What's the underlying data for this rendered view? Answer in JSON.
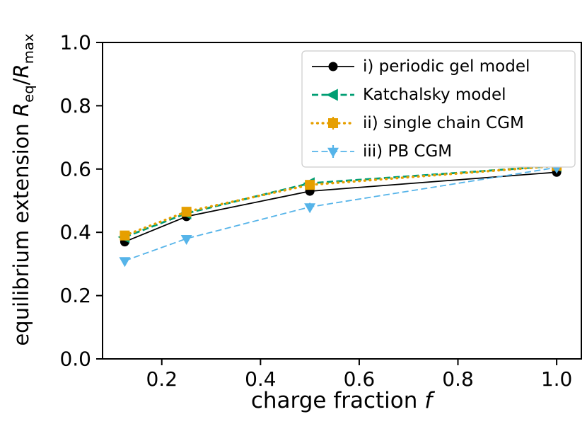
{
  "chart_data": {
    "type": "line",
    "title": "",
    "xlabel": "charge fraction f",
    "ylabel": "equilibrium extension R_eq/R_max",
    "xlabel_parts": {
      "text": "charge fraction ",
      "variable": "f"
    },
    "ylabel_parts": {
      "text": "equilibrium extension ",
      "var1": "R",
      "sub1": "eq",
      "sep": "/",
      "var2": "R",
      "sub2": "max"
    },
    "xlim": [
      0.08,
      1.05
    ],
    "ylim": [
      0.0,
      1.0
    ],
    "xticks": [
      0.2,
      0.4,
      0.6,
      0.8,
      1.0
    ],
    "yticks": [
      0.0,
      0.2,
      0.4,
      0.6,
      0.8,
      1.0
    ],
    "grid": false,
    "x": [
      0.125,
      0.25,
      0.5,
      1.0
    ],
    "series": [
      {
        "name": "i) periodic gel model",
        "values": [
          0.37,
          0.45,
          0.53,
          0.59
        ],
        "color": "#000000",
        "marker": "circle",
        "markersize": 6.5,
        "linestyle": "solid",
        "linewidth": 1.8
      },
      {
        "name": "Katchalsky model",
        "values": [
          0.385,
          0.46,
          0.555,
          0.61
        ],
        "color": "#009E73",
        "marker": "triangle-left",
        "markersize": 8.5,
        "linestyle": "dashed",
        "linewidth": 2.8
      },
      {
        "name": "ii) single chain CGM",
        "values": [
          0.39,
          0.465,
          0.55,
          0.61
        ],
        "color": "#E69F00",
        "marker": "square",
        "markersize": 7,
        "linestyle": "dotted",
        "linewidth": 3.4,
        "yerr": [
          0.01,
          0.01,
          0.012,
          0.015
        ]
      },
      {
        "name": "iii) PB CGM",
        "values": [
          0.31,
          0.38,
          0.48,
          0.605
        ],
        "color": "#56B4E9",
        "marker": "triangle-down",
        "markersize": 8,
        "linestyle": "dashed",
        "linewidth": 1.8,
        "yerr": [
          0.008,
          0.008,
          0.013,
          0.01
        ]
      }
    ],
    "legend": {
      "position": "upper right",
      "frame": true,
      "frame_color": "#cccccc"
    }
  }
}
